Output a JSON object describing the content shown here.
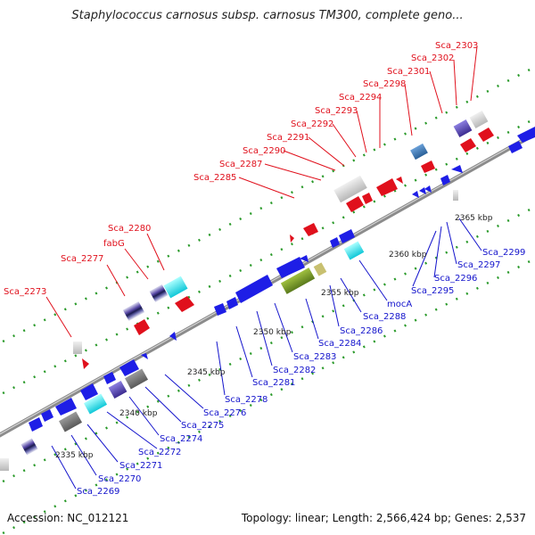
{
  "title": "Staphylococcus carnosus subsp. carnosus TM300, complete geno...",
  "footer": {
    "accession": "Accession: NC_012121",
    "summary": "Topology: linear; Length: 2,566,424 bp; Genes: 2,537"
  },
  "colors": {
    "strand": "#8c8c8c",
    "forward_gene": "#e0101c",
    "reverse_gene": "#1e1ee6",
    "tick": "#2a9a2a"
  },
  "scale_labels": [
    "2335 kbp",
    "2340 kbp",
    "2345 kbp",
    "2350 kbp",
    "2355 kbp",
    "2360 kbp",
    "2365 kbp"
  ],
  "genes_top": [
    "Sca_2273",
    "Sca_2277",
    "fabG",
    "Sca_2280",
    "Sca_2285",
    "Sca_2287",
    "Sca_2290",
    "Sca_2291",
    "Sca_2292",
    "Sca_2293",
    "Sca_2294",
    "Sca_2298",
    "Sca_2301",
    "Sca_2302",
    "Sca_2303"
  ],
  "genes_bottom": [
    "Sca_2269",
    "Sca_2270",
    "Sca_2271",
    "Sca_2272",
    "Sca_2274",
    "Sca_2275",
    "Sca_2276",
    "Sca_2278",
    "Sca_2281",
    "Sca_2282",
    "Sca_2283",
    "Sca_2284",
    "Sca_2286",
    "Sca_2288",
    "mocA",
    "Sca_2295",
    "Sca_2296",
    "Sca_2297",
    "Sca_2299"
  ]
}
